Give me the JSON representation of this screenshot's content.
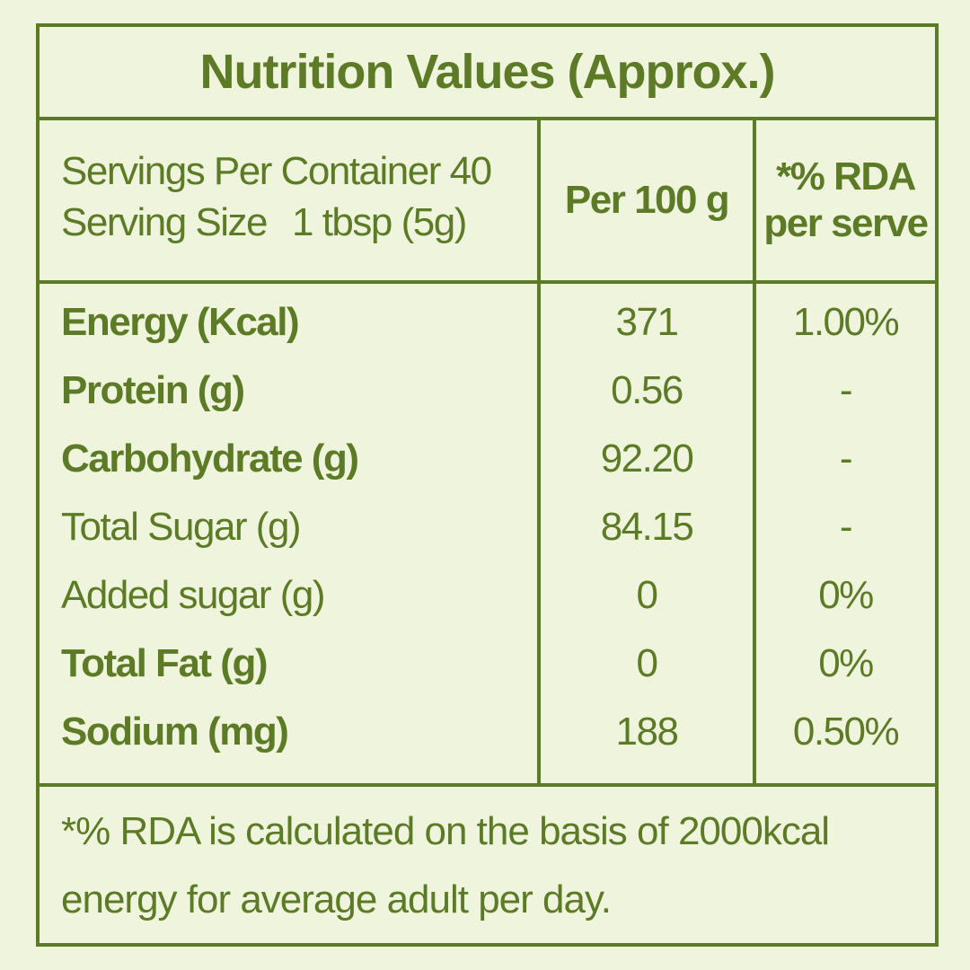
{
  "title": "Nutrition Values (Approx.)",
  "header": {
    "servings_per_container": "Servings Per Container 40",
    "serving_size_label": "Serving Size",
    "serving_size_value": "1 tbsp (5g)",
    "per_100g": "Per 100 g",
    "rda_line1": "*% RDA",
    "rda_line2": "per serve"
  },
  "rows": [
    {
      "name": "Energy (Kcal)",
      "bold": true,
      "per100g": "371",
      "rda": "1.00%"
    },
    {
      "name": "Protein (g)",
      "bold": true,
      "per100g": "0.56",
      "rda": "-"
    },
    {
      "name": "Carbohydrate (g)",
      "bold": true,
      "per100g": "92.20",
      "rda": "-"
    },
    {
      "name": "Total Sugar (g)",
      "bold": false,
      "per100g": "84.15",
      "rda": "-"
    },
    {
      "name": "Added sugar (g)",
      "bold": false,
      "per100g": "0",
      "rda": "0%"
    },
    {
      "name": "Total Fat (g)",
      "bold": true,
      "per100g": "0",
      "rda": "0%"
    },
    {
      "name": "Sodium (mg)",
      "bold": true,
      "per100g": "188",
      "rda": "0.50%"
    }
  ],
  "footnote": {
    "line1": "*% RDA is calculated on the basis of 2000kcal",
    "line2": "energy for average adult per day."
  },
  "colors": {
    "accent": "#5d7a26",
    "background": "#eef5dc"
  }
}
